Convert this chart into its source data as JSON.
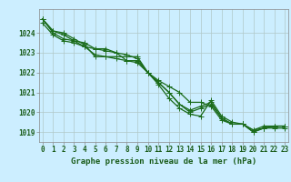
{
  "xlabel": "Graphe pression niveau de la mer (hPa)",
  "hours": [
    0,
    1,
    2,
    3,
    4,
    5,
    6,
    7,
    8,
    9,
    10,
    11,
    12,
    13,
    14,
    15,
    16,
    17,
    18,
    19,
    20,
    21,
    22,
    23
  ],
  "lines": [
    [
      1024.7,
      1024.1,
      1024.0,
      1023.7,
      1023.4,
      1022.8,
      1022.8,
      1022.8,
      1022.8,
      1022.8,
      1022.0,
      1021.6,
      1021.3,
      1021.0,
      1020.5,
      1020.5,
      1020.3,
      1019.6,
      1019.4,
      1019.4,
      1019.1,
      1019.2,
      1019.2,
      1019.2
    ],
    [
      1024.7,
      1024.1,
      1023.9,
      1023.6,
      1023.3,
      1022.9,
      1022.8,
      1022.7,
      1022.6,
      1022.5,
      1022.0,
      1021.5,
      1021.0,
      1020.4,
      1020.0,
      1020.2,
      1020.4,
      1019.7,
      1019.4,
      1019.4,
      1019.0,
      1019.2,
      1019.3,
      1019.3
    ],
    [
      1024.7,
      1024.0,
      1023.7,
      1023.6,
      1023.5,
      1023.2,
      1023.2,
      1023.0,
      1022.9,
      1022.7,
      1022.0,
      1021.4,
      1020.7,
      1020.2,
      1019.9,
      1019.8,
      1020.6,
      1019.8,
      1019.5,
      1019.4,
      1019.1,
      1019.3,
      1019.3,
      1019.3
    ],
    [
      1024.5,
      1023.9,
      1023.6,
      1023.5,
      1023.3,
      1023.2,
      1023.1,
      1023.0,
      1022.6,
      1022.6,
      1022.0,
      1021.5,
      1021.0,
      1020.4,
      1020.1,
      1020.3,
      1020.5,
      1019.7,
      1019.4,
      1019.4,
      1019.0,
      1019.2,
      1019.3,
      1019.3
    ]
  ],
  "line_color": "#1a6b1a",
  "marker": "+",
  "marker_size": 4,
  "ylim": [
    1018.5,
    1025.2
  ],
  "yticks": [
    1019,
    1020,
    1021,
    1022,
    1023,
    1024
  ],
  "bg_color": "#cceeff",
  "grid_color": "#b0c8c8",
  "text_color": "#1a5c1a",
  "line_width": 0.9,
  "tick_fontsize": 5.5,
  "label_fontsize": 6.5
}
